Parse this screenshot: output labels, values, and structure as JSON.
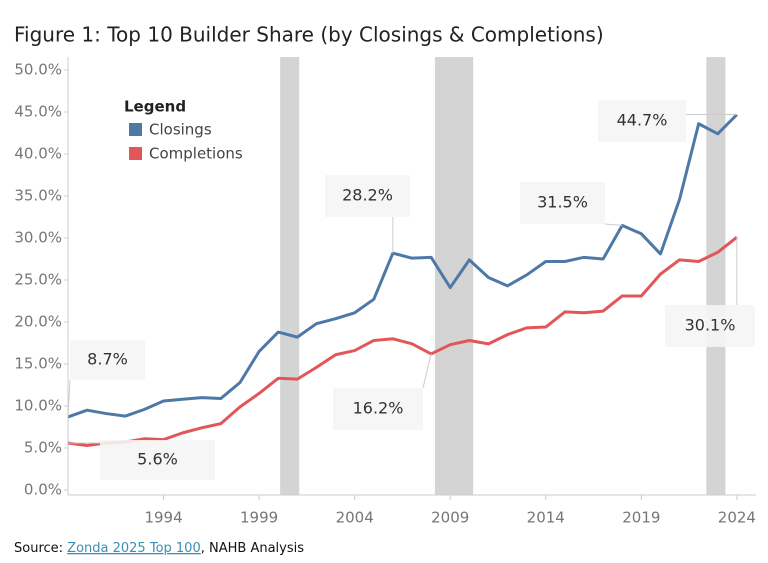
{
  "chart_data": {
    "type": "line",
    "title": "Figure 1: Top 10 Builder Share (by Closings & Completions)",
    "legend_title": "Legend",
    "x": [
      1989,
      1990,
      1991,
      1992,
      1993,
      1994,
      1995,
      1996,
      1997,
      1998,
      1999,
      2000,
      2001,
      2002,
      2003,
      2004,
      2005,
      2006,
      2007,
      2008,
      2009,
      2010,
      2011,
      2012,
      2013,
      2014,
      2015,
      2016,
      2017,
      2018,
      2019,
      2020,
      2021,
      2022,
      2023,
      2024
    ],
    "series": [
      {
        "name": "Closings",
        "color": "#4e79a7",
        "values": [
          8.7,
          9.5,
          9.1,
          8.8,
          9.6,
          10.6,
          10.8,
          11.0,
          10.9,
          12.8,
          16.5,
          18.8,
          18.2,
          19.8,
          20.4,
          21.1,
          22.7,
          28.2,
          27.6,
          27.7,
          24.1,
          27.4,
          25.3,
          24.3,
          25.6,
          27.2,
          27.2,
          27.7,
          27.5,
          31.5,
          30.5,
          28.1,
          34.6,
          43.6,
          42.4,
          44.7
        ]
      },
      {
        "name": "Completions",
        "color": "#e15759",
        "values": [
          5.6,
          5.3,
          5.6,
          5.7,
          6.1,
          6.0,
          6.8,
          7.4,
          7.9,
          9.9,
          11.5,
          13.3,
          13.2,
          14.6,
          16.1,
          16.6,
          17.8,
          18.0,
          17.4,
          16.2,
          17.3,
          17.8,
          17.4,
          18.5,
          19.3,
          19.4,
          21.2,
          21.1,
          21.3,
          23.1,
          23.1,
          25.7,
          27.4,
          27.2,
          28.3,
          30.1
        ]
      }
    ],
    "shaded_ranges": [
      [
        2000.1,
        2001.1
      ],
      [
        2008.2,
        2010.2
      ],
      [
        2022.4,
        2023.4
      ]
    ],
    "annotations": [
      {
        "label": "8.7%",
        "series": 0,
        "index": 0
      },
      {
        "label": "5.6%",
        "series": 1,
        "index": 0
      },
      {
        "label": "28.2%",
        "series": 0,
        "index": 17
      },
      {
        "label": "16.2%",
        "series": 1,
        "index": 19
      },
      {
        "label": "31.5%",
        "series": 0,
        "index": 29
      },
      {
        "label": "44.7%",
        "series": 0,
        "index": 35
      },
      {
        "label": "30.1%",
        "series": 1,
        "index": 35
      }
    ],
    "xlim": [
      1989,
      2025
    ],
    "xticks": [
      1994,
      1999,
      2004,
      2009,
      2014,
      2019,
      2024
    ],
    "ylim": [
      0,
      50
    ],
    "yticks": [
      {
        "value": 0,
        "label": "0.0%"
      },
      {
        "value": 5,
        "label": "5.0%"
      },
      {
        "value": 10,
        "label": "10.0%"
      },
      {
        "value": 15,
        "label": "15.0%"
      },
      {
        "value": 20,
        "label": "20.0%"
      },
      {
        "value": 25,
        "label": "25.0%"
      },
      {
        "value": 30,
        "label": "30.0%"
      },
      {
        "value": 35,
        "label": "35.0%"
      },
      {
        "value": 40,
        "label": "40.0%"
      },
      {
        "value": 45,
        "label": "45.0%"
      },
      {
        "value": 50,
        "label": "50.0%"
      }
    ],
    "source": {
      "prefix": "Source: ",
      "link": "Zonda 2025 Top 100",
      "suffix": ", NAHB Analysis"
    }
  }
}
